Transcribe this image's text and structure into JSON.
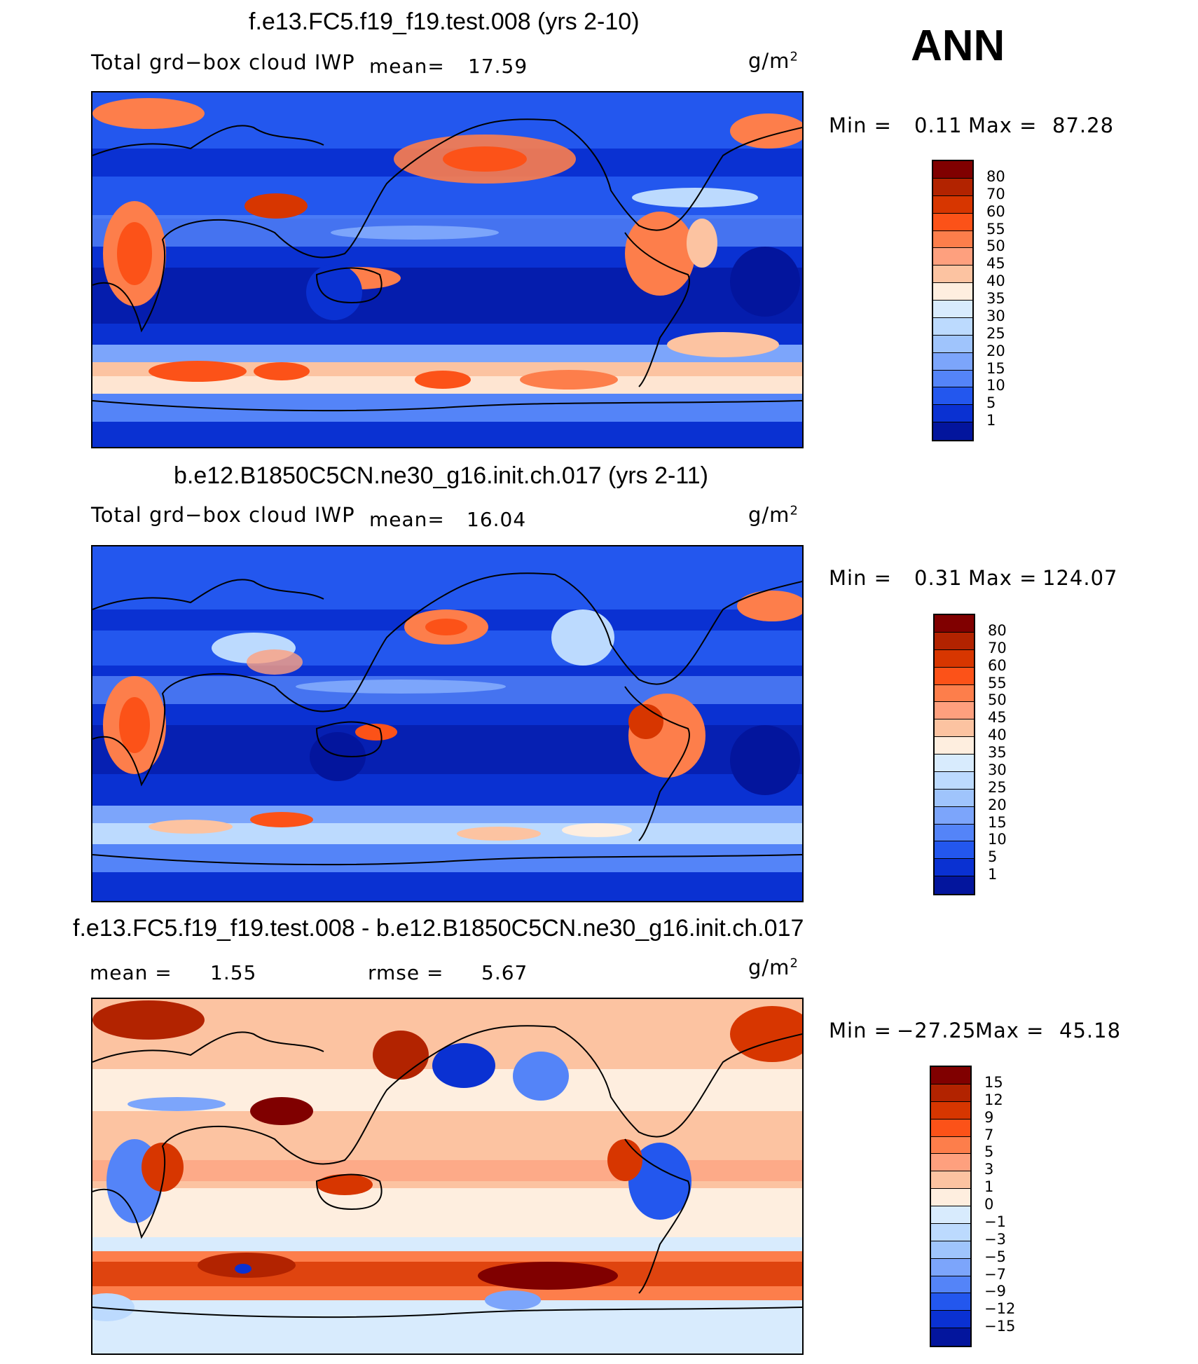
{
  "season": "ANN",
  "panels": [
    {
      "title": "f.e13.FC5.f19_f19.test.008 (yrs 2-10)",
      "left_label": "Total grd−box cloud IWP",
      "mean_label": "mean=",
      "mean_value": "17.59",
      "units": "g/m",
      "units_sup": "2",
      "min_label": "Min =",
      "min_value": "0.11",
      "max_label": "Max =",
      "max_value": "87.28",
      "colorbar": {
        "ticks": [
          "80",
          "70",
          "60",
          "55",
          "50",
          "45",
          "40",
          "35",
          "30",
          "25",
          "20",
          "15",
          "10",
          "5",
          "1"
        ],
        "colors": [
          "#800000",
          "#b22300",
          "#d73600",
          "#fc5218",
          "#fd7e4b",
          "#fea07e",
          "#fcc3a1",
          "#feeedf",
          "#d8ebfd",
          "#bcdafe",
          "#9fc4fc",
          "#7ca5fb",
          "#5484f8",
          "#2357ee",
          "#0a31d2",
          "#03159d"
        ]
      }
    },
    {
      "title": "b.e12.B1850C5CN.ne30_g16.init.ch.017 (yrs 2-11)",
      "left_label": "Total grd−box cloud IWP",
      "mean_label": "mean=",
      "mean_value": "16.04",
      "units": "g/m",
      "units_sup": "2",
      "min_label": "Min =",
      "min_value": "0.31",
      "max_label": "Max =",
      "max_value": "124.07",
      "colorbar": {
        "ticks": [
          "80",
          "70",
          "60",
          "55",
          "50",
          "45",
          "40",
          "35",
          "30",
          "25",
          "20",
          "15",
          "10",
          "5",
          "1"
        ],
        "colors": [
          "#800000",
          "#b22300",
          "#d73600",
          "#fc5218",
          "#fd7e4b",
          "#fea07e",
          "#fcc3a1",
          "#feeedf",
          "#d8ebfd",
          "#bcdafe",
          "#9fc4fc",
          "#7ca5fb",
          "#5484f8",
          "#2357ee",
          "#0a31d2",
          "#03159d"
        ]
      }
    },
    {
      "title": "f.e13.FC5.f19_f19.test.008 - b.e12.B1850C5CN.ne30_g16.init.ch.017",
      "mean_label": "mean =",
      "mean_value": "1.55",
      "rmse_label": "rmse =",
      "rmse_value": "5.67",
      "units": "g/m",
      "units_sup": "2",
      "min_label": "Min =",
      "min_value": "−27.25",
      "max_label": "Max =",
      "max_value": "45.18",
      "colorbar": {
        "ticks": [
          "15",
          "12",
          "9",
          "7",
          "5",
          "3",
          "1",
          "0",
          "−1",
          "−3",
          "−5",
          "−7",
          "−9",
          "−12",
          "−15"
        ],
        "colors": [
          "#800000",
          "#b22300",
          "#d73600",
          "#fc5218",
          "#fd7e4b",
          "#fea07e",
          "#fcc3a1",
          "#feeedf",
          "#d8ebfd",
          "#bcdafe",
          "#9fc4fc",
          "#7ca5fb",
          "#5484f8",
          "#2357ee",
          "#0a31d2",
          "#03159d"
        ]
      }
    }
  ]
}
